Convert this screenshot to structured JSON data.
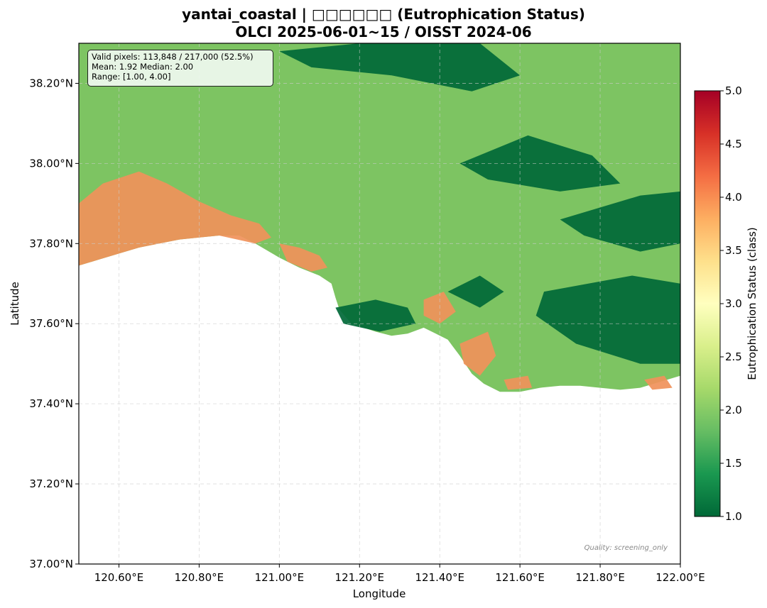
{
  "title": {
    "line1": "yantai_coastal | □□□□□□ (Eutrophication Status)",
    "line2": "OLCI 2025-06-01~15 / OISST 2024-06"
  },
  "stats": {
    "valid": "Valid pixels: 113,848 / 217,000 (52.5%)",
    "mean_median": "Mean: 1.92  Median: 2.00",
    "range": "Range: [1.00, 4.00]"
  },
  "quality_note": "Quality: screening_only",
  "axes": {
    "xlabel": "Longitude",
    "ylabel": "Latitude",
    "xlim": [
      120.5,
      122.0
    ],
    "ylim": [
      37.0,
      38.3
    ],
    "xticks": [
      120.6,
      120.8,
      121.0,
      121.2,
      121.4,
      121.6,
      121.8,
      122.0
    ],
    "xtick_labels": [
      "120.60°E",
      "120.80°E",
      "121.00°E",
      "121.20°E",
      "121.40°E",
      "121.60°E",
      "121.80°E",
      "122.00°E"
    ],
    "yticks": [
      37.0,
      37.2,
      37.4,
      37.6,
      37.8,
      38.0,
      38.2
    ],
    "ytick_labels": [
      "37.00°N",
      "37.20°N",
      "37.40°N",
      "37.60°N",
      "37.80°N",
      "38.00°N",
      "38.20°N"
    ],
    "grid": true
  },
  "colorbar": {
    "label": "Eutrophication Status (class)",
    "min": 1.0,
    "max": 5.0,
    "ticks": [
      1.0,
      1.5,
      2.0,
      2.5,
      3.0,
      3.5,
      4.0,
      4.5,
      5.0
    ],
    "tick_labels": [
      "1.0",
      "1.5",
      "2.0",
      "2.5",
      "3.0",
      "3.5",
      "4.0",
      "4.5",
      "5.0"
    ],
    "colormap": [
      "#006837",
      "#1a9850",
      "#66bd63",
      "#a6d96a",
      "#d9ef8b",
      "#ffffbf",
      "#fee08b",
      "#fdae61",
      "#f46d43",
      "#d73027",
      "#a50026"
    ]
  },
  "map_colors": {
    "land": "#ffffff",
    "class_1": "#006837",
    "class_2": "#7dc462",
    "class_4": "#f0915a"
  },
  "chart_data": {
    "type": "heatmap",
    "title": "yantai_coastal | □□□□□□ (Eutrophication Status)",
    "subtitle": "OLCI 2025-06-01~15 / OISST 2024-06",
    "xlabel": "Longitude",
    "ylabel": "Latitude",
    "xlim": [
      120.5,
      122.0
    ],
    "ylim": [
      37.0,
      38.3
    ],
    "value_label": "Eutrophication Status (class)",
    "value_range": [
      1.0,
      5.0
    ],
    "valid_pixels": 113848,
    "total_pixels": 217000,
    "valid_fraction_pct": 52.5,
    "mean": 1.92,
    "median": 2.0,
    "data_range": [
      1.0,
      4.0
    ],
    "coastline_lonlat": [
      [
        120.5,
        37.745
      ],
      [
        120.55,
        37.76
      ],
      [
        120.6,
        37.775
      ],
      [
        120.65,
        37.79
      ],
      [
        120.7,
        37.8
      ],
      [
        120.75,
        37.81
      ],
      [
        120.8,
        37.815
      ],
      [
        120.85,
        37.82
      ],
      [
        120.9,
        37.82
      ],
      [
        120.94,
        37.8
      ],
      [
        121.0,
        37.765
      ],
      [
        121.05,
        37.74
      ],
      [
        121.1,
        37.72
      ],
      [
        121.13,
        37.7
      ],
      [
        121.14,
        37.665
      ],
      [
        121.15,
        37.635
      ],
      [
        121.18,
        37.6
      ],
      [
        121.24,
        37.58
      ],
      [
        121.28,
        37.57
      ],
      [
        121.32,
        37.575
      ],
      [
        121.36,
        37.59
      ],
      [
        121.39,
        37.575
      ],
      [
        121.42,
        37.56
      ],
      [
        121.45,
        37.52
      ],
      [
        121.48,
        37.475
      ],
      [
        121.51,
        37.45
      ],
      [
        121.55,
        37.43
      ],
      [
        121.6,
        37.43
      ],
      [
        121.65,
        37.44
      ],
      [
        121.7,
        37.445
      ],
      [
        121.75,
        37.445
      ],
      [
        121.8,
        37.44
      ],
      [
        121.85,
        37.435
      ],
      [
        121.9,
        37.44
      ],
      [
        121.95,
        37.455
      ],
      [
        122.0,
        37.47
      ]
    ],
    "regions_lonlat": [
      {
        "class": 4,
        "points": [
          [
            120.5,
            37.9
          ],
          [
            120.56,
            37.95
          ],
          [
            120.65,
            37.98
          ],
          [
            120.72,
            37.95
          ],
          [
            120.8,
            37.905
          ],
          [
            120.88,
            37.87
          ],
          [
            120.95,
            37.85
          ],
          [
            120.98,
            37.815
          ],
          [
            120.94,
            37.8
          ],
          [
            120.85,
            37.82
          ],
          [
            120.75,
            37.81
          ],
          [
            120.65,
            37.79
          ],
          [
            120.55,
            37.76
          ],
          [
            120.5,
            37.745
          ]
        ]
      },
      {
        "class": 4,
        "points": [
          [
            121.0,
            37.8
          ],
          [
            121.05,
            37.79
          ],
          [
            121.1,
            37.77
          ],
          [
            121.12,
            37.74
          ],
          [
            121.08,
            37.73
          ],
          [
            121.02,
            37.755
          ]
        ]
      },
      {
        "class": 4,
        "points": [
          [
            121.36,
            37.66
          ],
          [
            121.41,
            37.68
          ],
          [
            121.44,
            37.63
          ],
          [
            121.4,
            37.6
          ],
          [
            121.36,
            37.62
          ]
        ]
      },
      {
        "class": 4,
        "points": [
          [
            121.45,
            37.55
          ],
          [
            121.52,
            37.58
          ],
          [
            121.54,
            37.52
          ],
          [
            121.5,
            37.47
          ],
          [
            121.46,
            37.5
          ]
        ]
      },
      {
        "class": 4,
        "points": [
          [
            121.56,
            37.46
          ],
          [
            121.62,
            37.47
          ],
          [
            121.63,
            37.44
          ],
          [
            121.57,
            37.435
          ]
        ]
      },
      {
        "class": 4,
        "points": [
          [
            121.91,
            37.46
          ],
          [
            121.96,
            37.47
          ],
          [
            121.98,
            37.44
          ],
          [
            121.93,
            37.435
          ]
        ]
      },
      {
        "class": 1,
        "points": [
          [
            121.0,
            38.28
          ],
          [
            121.2,
            38.3
          ],
          [
            121.5,
            38.3
          ],
          [
            121.6,
            38.22
          ],
          [
            121.48,
            38.18
          ],
          [
            121.28,
            38.22
          ],
          [
            121.08,
            38.24
          ]
        ]
      },
      {
        "class": 1,
        "points": [
          [
            121.45,
            38.0
          ],
          [
            121.62,
            38.07
          ],
          [
            121.78,
            38.02
          ],
          [
            121.85,
            37.95
          ],
          [
            121.7,
            37.93
          ],
          [
            121.52,
            37.96
          ]
        ]
      },
      {
        "class": 1,
        "points": [
          [
            121.7,
            37.86
          ],
          [
            121.9,
            37.92
          ],
          [
            122.0,
            37.93
          ],
          [
            122.0,
            37.8
          ],
          [
            121.9,
            37.78
          ],
          [
            121.76,
            37.82
          ]
        ]
      },
      {
        "class": 1,
        "points": [
          [
            121.66,
            37.68
          ],
          [
            121.88,
            37.72
          ],
          [
            122.0,
            37.7
          ],
          [
            122.0,
            37.5
          ],
          [
            121.9,
            37.5
          ],
          [
            121.74,
            37.55
          ],
          [
            121.64,
            37.62
          ]
        ]
      },
      {
        "class": 1,
        "points": [
          [
            121.14,
            37.64
          ],
          [
            121.24,
            37.66
          ],
          [
            121.32,
            37.64
          ],
          [
            121.34,
            37.6
          ],
          [
            121.25,
            37.58
          ],
          [
            121.16,
            37.6
          ]
        ]
      },
      {
        "class": 1,
        "points": [
          [
            121.42,
            37.68
          ],
          [
            121.5,
            37.72
          ],
          [
            121.56,
            37.68
          ],
          [
            121.5,
            37.64
          ]
        ]
      }
    ]
  }
}
